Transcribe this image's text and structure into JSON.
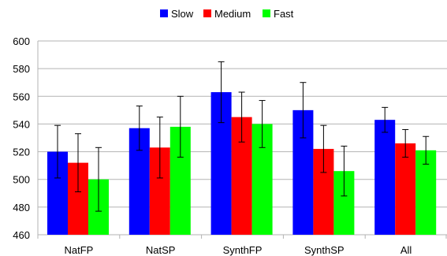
{
  "chart_data": {
    "type": "bar",
    "title": "",
    "xlabel": "",
    "ylabel": "",
    "ylim": [
      460,
      600
    ],
    "yticks": [
      460,
      480,
      500,
      520,
      540,
      560,
      580,
      600
    ],
    "grid": true,
    "legend_position": "top-center",
    "categories": [
      "NatFP",
      "NatSP",
      "SynthFP",
      "SynthSP",
      "All"
    ],
    "series": [
      {
        "name": "Slow",
        "color": "#0000ff",
        "values": [
          520,
          537,
          563,
          550,
          543
        ],
        "errors": [
          19,
          16,
          22,
          20,
          9
        ]
      },
      {
        "name": "Medium",
        "color": "#ff0000",
        "values": [
          512,
          523,
          545,
          522,
          526
        ],
        "errors": [
          21,
          22,
          18,
          17,
          10
        ]
      },
      {
        "name": "Fast",
        "color": "#00ff00",
        "values": [
          500,
          538,
          540,
          506,
          521
        ],
        "errors": [
          23,
          22,
          17,
          18,
          10
        ]
      }
    ]
  }
}
